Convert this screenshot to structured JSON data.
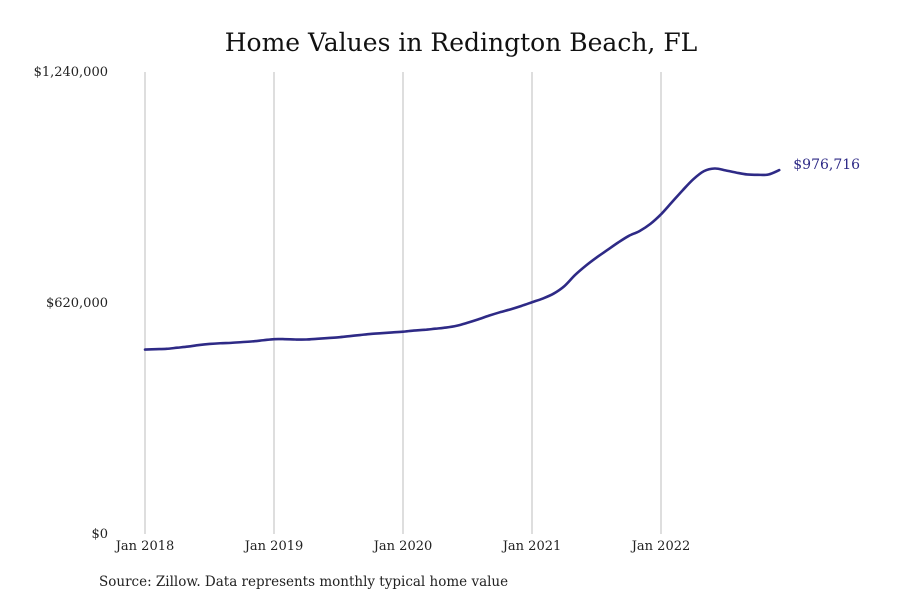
{
  "chart_data": {
    "type": "line",
    "title": "Home Values in Redington Beach, FL",
    "xlabel": "",
    "ylabel": "",
    "ylim": [
      0,
      1240000
    ],
    "y_ticks": [
      "$0",
      "$620,000",
      "$1,240,000"
    ],
    "x_ticks": [
      "Jan 2018",
      "Jan 2019",
      "Jan 2020",
      "Jan 2021",
      "Jan 2022"
    ],
    "grid": "vertical",
    "legend": "none",
    "series": [
      {
        "color": "#2e2a86",
        "end_label": "$976,716",
        "x": [
          "2018-01",
          "2018-02",
          "2018-03",
          "2018-04",
          "2018-05",
          "2018-06",
          "2018-07",
          "2018-08",
          "2018-09",
          "2018-10",
          "2018-11",
          "2018-12",
          "2019-01",
          "2019-02",
          "2019-03",
          "2019-04",
          "2019-05",
          "2019-06",
          "2019-07",
          "2019-08",
          "2019-09",
          "2019-10",
          "2019-11",
          "2019-12",
          "2020-01",
          "2020-02",
          "2020-03",
          "2020-04",
          "2020-05",
          "2020-06",
          "2020-07",
          "2020-08",
          "2020-09",
          "2020-10",
          "2020-11",
          "2020-12",
          "2021-01",
          "2021-02",
          "2021-03",
          "2021-04",
          "2021-05",
          "2021-06",
          "2021-07",
          "2021-08",
          "2021-09",
          "2021-10",
          "2021-11",
          "2021-12",
          "2022-01",
          "2022-02",
          "2022-03",
          "2022-04",
          "2022-05",
          "2022-06",
          "2022-07",
          "2022-08",
          "2022-09",
          "2022-10",
          "2022-11",
          "2022-12"
        ],
        "values": [
          495000,
          496000,
          497000,
          500000,
          503000,
          507000,
          510000,
          512000,
          513000,
          515000,
          517000,
          520000,
          523000,
          523000,
          522000,
          522000,
          524000,
          526000,
          528000,
          531000,
          534000,
          537000,
          539000,
          541000,
          543000,
          546000,
          548000,
          551000,
          554000,
          559000,
          567000,
          576000,
          586000,
          595000,
          603000,
          612000,
          622000,
          632000,
          645000,
          665000,
          695000,
          720000,
          742000,
          762000,
          782000,
          800000,
          813000,
          832000,
          858000,
          890000,
          922000,
          952000,
          974000,
          981000,
          976000,
          970000,
          965000,
          964000,
          965000,
          976716
        ]
      }
    ]
  },
  "source": "Source: Zillow. Data represents monthly typical home value"
}
